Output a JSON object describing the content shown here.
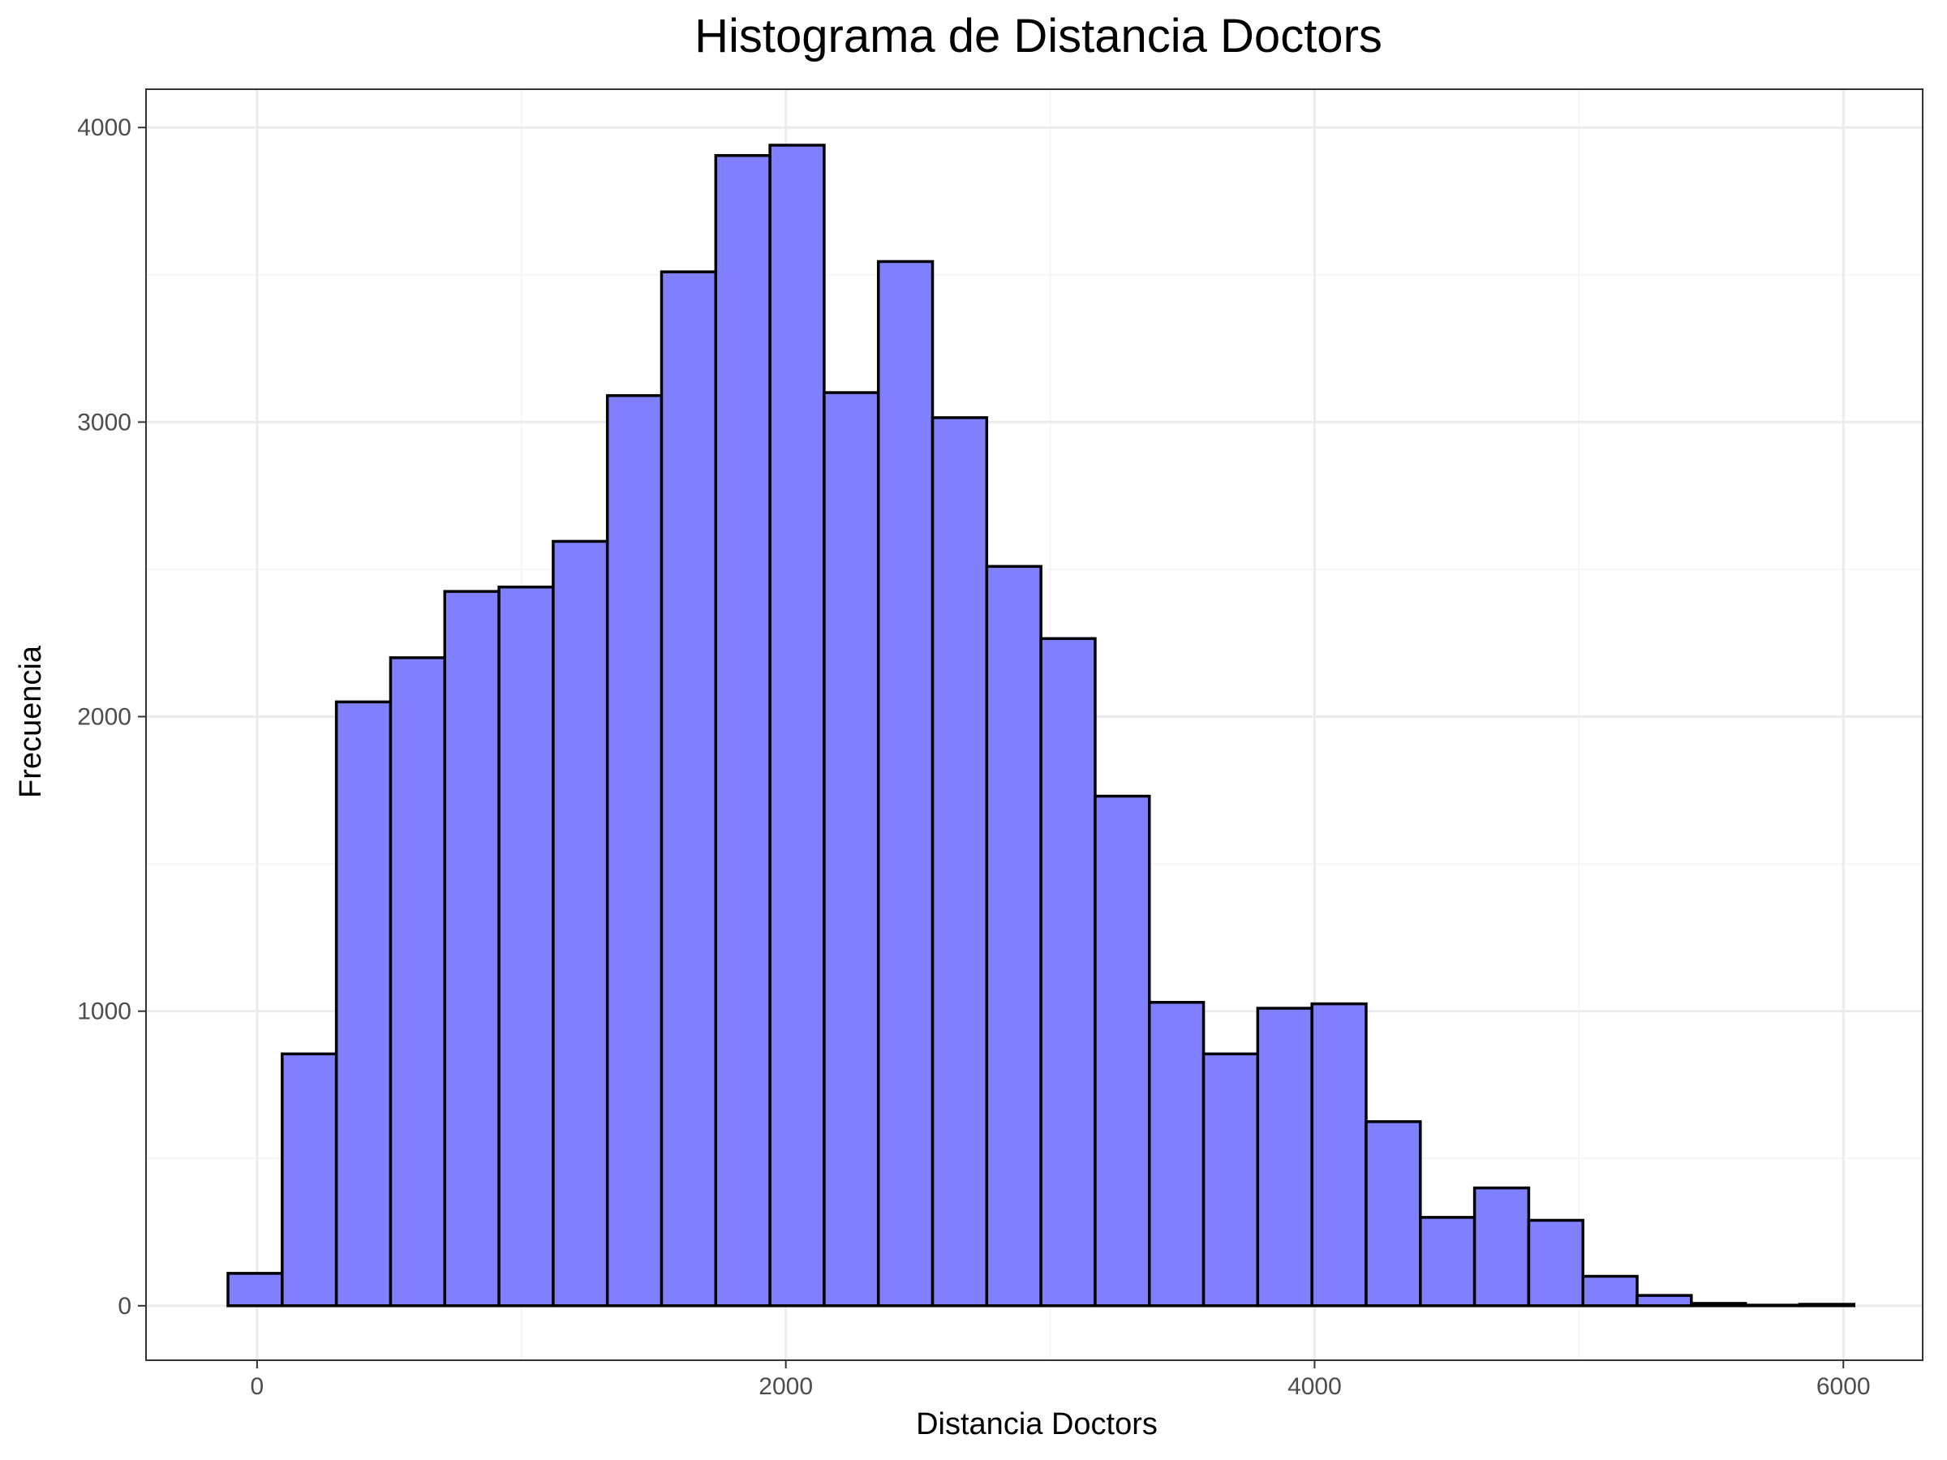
{
  "chart_data": {
    "type": "bar",
    "title": "Histograma de Distancia Doctors",
    "xlabel": "Distancia Doctors",
    "ylabel": "Frecuencia",
    "xlim": [
      -420,
      6300
    ],
    "ylim": [
      -185,
      4130
    ],
    "x_ticks": [
      0,
      2000,
      4000,
      6000
    ],
    "y_ticks": [
      0,
      1000,
      2000,
      3000,
      4000
    ],
    "bin_width": 205,
    "bins_start": -110,
    "values": [
      110,
      855,
      2050,
      2200,
      2425,
      2440,
      2595,
      3090,
      3510,
      3905,
      3940,
      3100,
      3545,
      3015,
      2510,
      2265,
      1730,
      1030,
      855,
      1010,
      1025,
      625,
      300,
      400,
      290,
      100,
      35,
      8,
      2,
      5
    ],
    "fill_color": "#8080ff",
    "edge_color": "#000000",
    "grid": true,
    "legend": "none"
  }
}
